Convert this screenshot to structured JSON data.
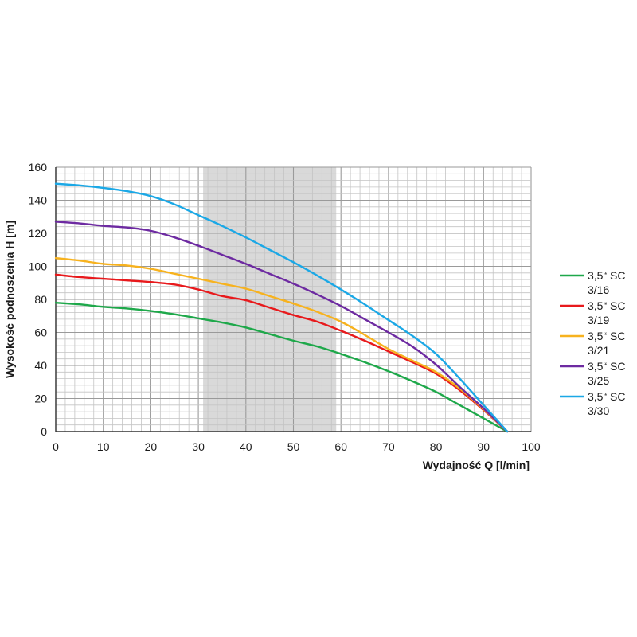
{
  "chart_data": {
    "type": "line",
    "xlabel": "Wydajność Q [l/min]",
    "ylabel": "Wysokość podnoszenia H [m]",
    "xlim": [
      0,
      100
    ],
    "ylim": [
      0,
      160
    ],
    "x_ticks": [
      0,
      10,
      20,
      30,
      40,
      50,
      60,
      70,
      80,
      90,
      100
    ],
    "y_ticks": [
      0,
      20,
      40,
      60,
      80,
      100,
      120,
      140,
      160
    ],
    "x_minor_step": 2,
    "y_minor_step": 4,
    "grid": true,
    "highlight_band": {
      "x_from": 31,
      "x_to": 59,
      "color": "#d9d9d9"
    },
    "legend_position": "right",
    "series": [
      {
        "name_line1": "3,5“ SC",
        "name_line2": "3/16",
        "color": "#1ea84a",
        "x": [
          0,
          5,
          10,
          15,
          20,
          25,
          30,
          35,
          40,
          45,
          50,
          55,
          60,
          65,
          70,
          75,
          80,
          85,
          90,
          95
        ],
        "y": [
          78,
          77,
          75.5,
          74.5,
          73,
          71,
          68.5,
          66,
          63,
          59,
          55,
          51.5,
          47,
          42,
          36.5,
          30.5,
          24,
          16,
          8,
          0
        ]
      },
      {
        "name_line1": "3,5“ SC",
        "name_line2": "3/19",
        "color": "#e8191c",
        "x": [
          0,
          5,
          10,
          15,
          20,
          25,
          30,
          35,
          40,
          45,
          50,
          55,
          60,
          65,
          70,
          75,
          80,
          85,
          90,
          95
        ],
        "y": [
          95,
          93.5,
          92.5,
          91.5,
          90.5,
          89,
          86,
          82,
          79.5,
          75,
          70.5,
          66.5,
          61,
          55,
          48.5,
          42,
          35,
          25,
          13,
          0
        ]
      },
      {
        "name_line1": "3,5“ SC",
        "name_line2": "3/21",
        "color": "#f7b21e",
        "x": [
          0,
          5,
          10,
          15,
          20,
          25,
          30,
          35,
          40,
          45,
          50,
          55,
          60,
          65,
          70,
          75,
          80,
          85,
          90,
          95
        ],
        "y": [
          105,
          103.5,
          101.5,
          100.5,
          98.5,
          95.5,
          92.5,
          89.5,
          86.5,
          82,
          77.5,
          72.5,
          66.5,
          58.5,
          50,
          43,
          36,
          26,
          13.5,
          0
        ]
      },
      {
        "name_line1": "3,5“ SC",
        "name_line2": "3/25",
        "color": "#6d2aa1",
        "x": [
          0,
          5,
          10,
          15,
          20,
          25,
          30,
          35,
          40,
          45,
          50,
          55,
          60,
          65,
          70,
          75,
          80,
          85,
          90,
          95
        ],
        "y": [
          127,
          126,
          124.5,
          123.5,
          121.5,
          117.5,
          112.5,
          107,
          101.5,
          95.5,
          89.5,
          83,
          76,
          68,
          60,
          51.5,
          40.5,
          27,
          14,
          0
        ]
      },
      {
        "name_line1": "3,5“ SC",
        "name_line2": "3/30",
        "color": "#1ba8e6",
        "x": [
          0,
          5,
          10,
          15,
          20,
          25,
          30,
          35,
          40,
          45,
          50,
          55,
          60,
          65,
          70,
          75,
          80,
          85,
          90,
          95
        ],
        "y": [
          150,
          149,
          147.5,
          145.5,
          142.5,
          137.5,
          131,
          124.5,
          117.5,
          110,
          102.5,
          94.5,
          86,
          77,
          67.5,
          58,
          47,
          32,
          16,
          0
        ]
      }
    ]
  }
}
